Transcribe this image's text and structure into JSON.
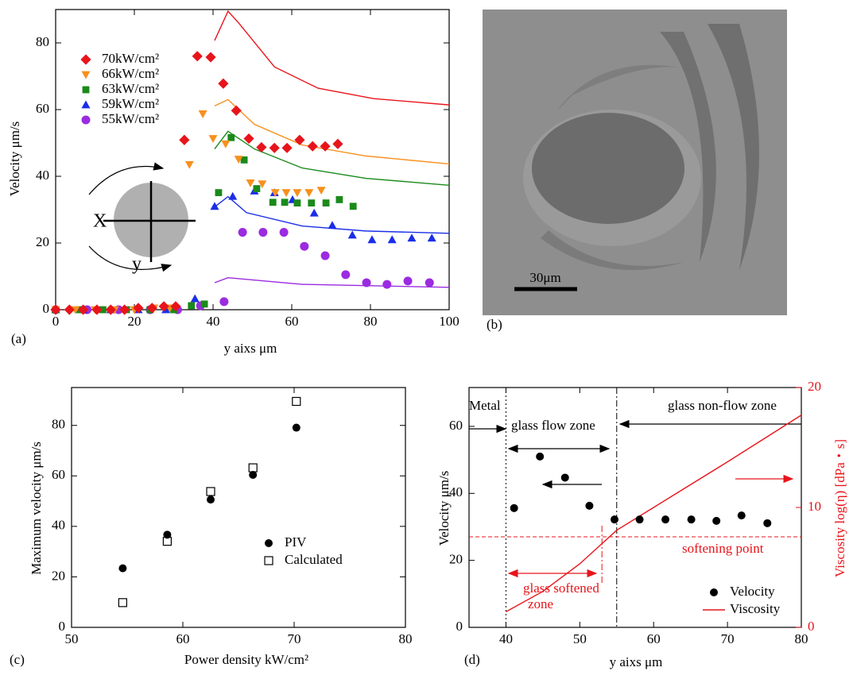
{
  "chart_data": [
    {
      "type": "scatter",
      "label": "(a)",
      "xlabel": "y aixs μm",
      "ylabel": "Velocity μm/s",
      "xlim": [
        0,
        100
      ],
      "xticks": [
        0,
        20,
        40,
        60,
        80,
        100
      ],
      "ylim": [
        0,
        90
      ],
      "yticks": [
        0,
        20,
        40,
        60,
        80
      ],
      "series": [
        {
          "name": "70kW/cm²",
          "color": "#e8141b",
          "marker": "diamond",
          "x": [
            0,
            3.5,
            7,
            10.5,
            14,
            17.5,
            21,
            24.5,
            27.5,
            30.5,
            32.7,
            36,
            39.4,
            42.6,
            45.9,
            49.1,
            52.3,
            55.6,
            58.8,
            62,
            65.3,
            68.5,
            71.7
          ],
          "values": [
            0,
            0,
            0,
            0,
            0,
            0,
            0.5,
            0.5,
            1,
            1,
            50.9,
            76,
            75.7,
            67.8,
            59.7,
            51.3,
            48.7,
            48.5,
            48.5,
            50.9,
            49,
            49,
            49.7
          ]
        },
        {
          "name": "66kW/cm²",
          "color": "#f7901e",
          "marker": "triangle-down",
          "x": [
            0,
            5,
            10,
            15,
            20,
            25,
            29,
            34,
            37.4,
            40,
            43.2,
            46.5,
            49.5,
            52.5,
            55.8,
            58.6,
            61.4,
            64.4,
            67.5
          ],
          "values": [
            0,
            0,
            0,
            0,
            0,
            0.5,
            0.5,
            43.5,
            58.7,
            51.3,
            49.7,
            45.1,
            38,
            37.7,
            35.1,
            35.1,
            35.1,
            35.1,
            35.8
          ]
        },
        {
          "name": "63kW/cm²",
          "color": "#1a8a1a",
          "marker": "square",
          "x": [
            0,
            6,
            12,
            18,
            24,
            30,
            34.5,
            37.8,
            41.4,
            44.6,
            47.9,
            51.1,
            55.2,
            58.2,
            61.4,
            65,
            68.7,
            72.1,
            75.6
          ],
          "values": [
            0,
            0,
            0,
            0,
            0,
            0,
            1.2,
            1.7,
            35.1,
            51.6,
            44.9,
            36.3,
            32.2,
            32.2,
            32,
            32,
            32,
            33,
            31
          ]
        },
        {
          "name": "59kW/cm²",
          "color": "#1a2ee8",
          "marker": "triangle-up",
          "x": [
            0,
            7,
            14,
            21,
            28,
            35.4,
            40.4,
            45,
            50.5,
            55.6,
            60.2,
            65.7,
            70.3,
            75.4,
            80.4,
            85.5,
            90.5,
            95.6
          ],
          "values": [
            0,
            0,
            0,
            0,
            0,
            3.3,
            31,
            34,
            35.6,
            35.1,
            33,
            29,
            25.3,
            22.4,
            21,
            21,
            21.5,
            21.5
          ]
        },
        {
          "name": "55kW/cm²",
          "color": "#9b2be0",
          "marker": "circle",
          "x": [
            0,
            8,
            16,
            24,
            31,
            36.8,
            42.8,
            47.5,
            52.7,
            58,
            63.2,
            68.5,
            73.7,
            79,
            84.2,
            89.5,
            95
          ],
          "values": [
            0,
            0,
            0,
            0,
            0,
            1.2,
            2.4,
            23.2,
            23.2,
            23.2,
            19,
            16.2,
            10.5,
            8.1,
            7.6,
            8.6,
            8.1
          ]
        }
      ],
      "lines": [
        {
          "color": "#e8141b",
          "x": [
            40.4,
            43.8,
            46.5,
            55.6,
            66.7,
            80.8,
            100
          ],
          "values": [
            80.7,
            89.5,
            86,
            72.8,
            66.4,
            63.3,
            61.4
          ]
        },
        {
          "color": "#f7901e",
          "x": [
            40.4,
            43.8,
            50.5,
            62.6,
            78.8,
            100
          ],
          "values": [
            61.1,
            63,
            55.6,
            49.4,
            46.1,
            43.7
          ]
        },
        {
          "color": "#1a8a1a",
          "x": [
            40.4,
            43.8,
            50.5,
            62.6,
            78.8,
            100
          ],
          "values": [
            48.2,
            53.5,
            48.2,
            42.5,
            39.4,
            37.3
          ]
        },
        {
          "color": "#1a2ee8",
          "x": [
            40.4,
            43.8,
            48.5,
            62.6,
            78.8,
            100
          ],
          "values": [
            30.8,
            33.9,
            29.1,
            25.1,
            23.6,
            22.9
          ]
        },
        {
          "color": "#9b2be0",
          "x": [
            40.4,
            43.8,
            62.6,
            100
          ],
          "values": [
            8.1,
            9.6,
            7.6,
            6.7
          ]
        }
      ],
      "annotations": [
        "X",
        "y"
      ]
    },
    {
      "type": "scatter",
      "label": "(c)",
      "xlabel": "Power density kW/cm²",
      "ylabel": "Maximum velocity μm/s",
      "xlim": [
        50,
        80
      ],
      "xticks": [
        50,
        60,
        70,
        80
      ],
      "ylim": [
        0,
        95
      ],
      "yticks": [
        0,
        20,
        40,
        60,
        80
      ],
      "series": [
        {
          "name": "PIV",
          "color": "#000000",
          "marker": "circle",
          "x": [
            54.6,
            58.6,
            62.5,
            66.3,
            70.2
          ],
          "values": [
            23.4,
            36.7,
            50.6,
            60.4,
            79.1
          ]
        },
        {
          "name": "Calculated",
          "color": "#000000",
          "marker": "square-open",
          "x": [
            54.6,
            58.6,
            62.5,
            66.3,
            70.2
          ],
          "values": [
            9.8,
            34.1,
            53.8,
            63.2,
            89.5
          ]
        }
      ]
    },
    {
      "type": "scatter",
      "label": "(d)",
      "xlabel": "y aixs μm",
      "ylabel": "Velocity μm/s",
      "y2label": "Viscosity log(η) [dPa・s]",
      "xlim": [
        35,
        80
      ],
      "xticks": [
        40,
        50,
        60,
        70,
        80
      ],
      "ylim": [
        0,
        71.6
      ],
      "yticks": [
        0,
        20,
        40,
        60
      ],
      "y2lim": [
        0,
        20
      ],
      "y2ticks": [
        0,
        10,
        20
      ],
      "y2color": "#e8141b",
      "series": [
        {
          "name": "Velocity",
          "color": "#000000",
          "marker": "circle",
          "x": [
            41.1,
            44.6,
            48,
            51.3,
            54.7,
            58.1,
            61.6,
            65.1,
            68.5,
            71.9,
            75.4
          ],
          "values": [
            35.6,
            51,
            44.7,
            36.3,
            32.2,
            32.2,
            32.2,
            32.2,
            31.8,
            33.4,
            31.1
          ]
        },
        {
          "name": "Viscosity",
          "color": "#e8141b",
          "marker": "line",
          "axis": "y2",
          "x": [
            40,
            45,
            50,
            55,
            60,
            70,
            80
          ],
          "values": [
            1.3,
            3.0,
            5.3,
            8.1,
            10.0,
            13.8,
            17.7
          ]
        }
      ],
      "zone_boundaries": [
        40,
        55
      ],
      "softening_point": 7.55,
      "softened_zone_end": 53,
      "annotations": [
        "Metal",
        "glass flow zone",
        "glass non-flow zone",
        "softening point",
        "glass softened",
        "zone"
      ]
    }
  ],
  "image": {
    "label": "(b)",
    "scale_bar": "30μm"
  }
}
